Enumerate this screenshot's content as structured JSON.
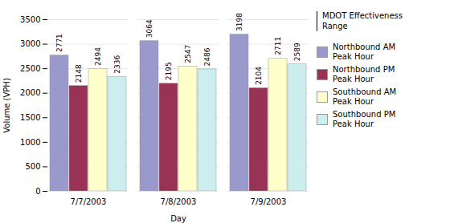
{
  "chart_data": {
    "type": "bar",
    "categories": [
      "7/7/2003",
      "7/8/2003",
      "7/9/2003"
    ],
    "series": [
      {
        "name": "Northbound AM\nPeak Hour",
        "color": "#9999cc",
        "values": [
          2771,
          3064,
          3198
        ]
      },
      {
        "name": "Northbound PM\nPeak Hour",
        "color": "#993355",
        "values": [
          2148,
          2195,
          2104
        ]
      },
      {
        "name": "Southbound AM\nPeak Hour",
        "color": "#ffffcc",
        "values": [
          2494,
          2547,
          2711
        ]
      },
      {
        "name": "Southbound PM\nPeak Hour",
        "color": "#cceeee",
        "values": [
          2336,
          2486,
          2589
        ]
      }
    ],
    "xlabel": "Day",
    "ylabel": "Volume (VPH)",
    "ylim": [
      0,
      3500
    ],
    "yticks": [
      0,
      500,
      1000,
      1500,
      2000,
      2500,
      3000,
      3500
    ],
    "grid": true,
    "data_labels": true,
    "legend": "right",
    "annotations": [
      "MDOT Effectiveness\nRange"
    ]
  }
}
